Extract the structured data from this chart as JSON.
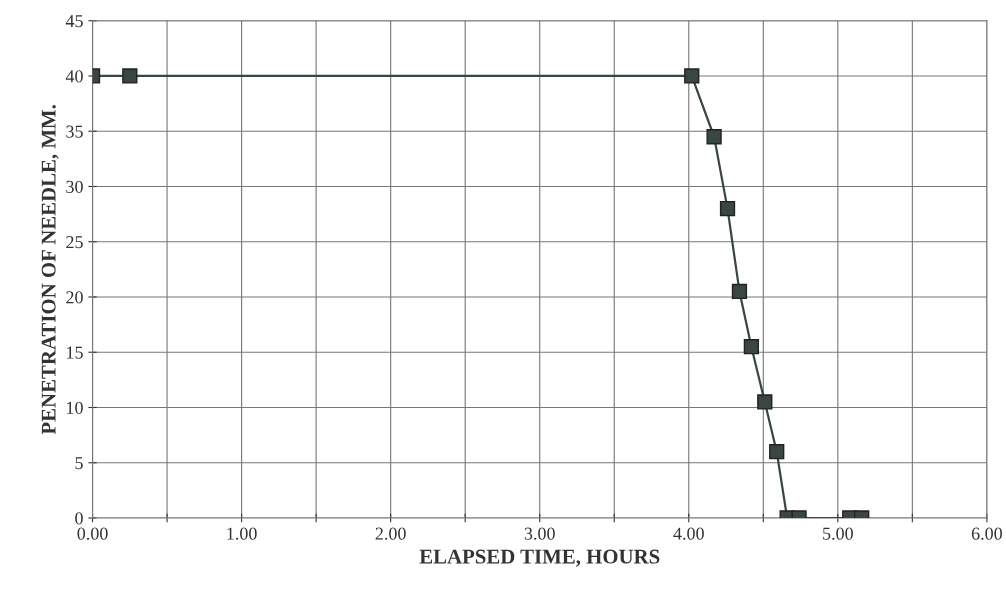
{
  "chart_data": {
    "type": "line",
    "xlabel": "ELAPSED TIME, HOURS",
    "ylabel": "PENETRATION OF NEEDLE, MM.",
    "series": [
      {
        "color": "#3a4644",
        "x": [
          0.0,
          0.25,
          4.02,
          4.17,
          4.26,
          4.34,
          4.42,
          4.51,
          4.59,
          4.66,
          4.74,
          5.08,
          5.16
        ],
        "values": [
          40,
          40,
          40,
          34.5,
          28,
          20.5,
          15.5,
          10.5,
          6,
          0,
          0,
          0,
          0
        ]
      }
    ],
    "xlim": [
      0,
      6
    ],
    "ylim": [
      0,
      45
    ],
    "xticks": [
      {
        "value": 0,
        "label": "0.00"
      },
      {
        "value": 0.5,
        "label": null
      },
      {
        "value": 1,
        "label": "1.00"
      },
      {
        "value": 1.5,
        "label": null
      },
      {
        "value": 2,
        "label": "2.00"
      },
      {
        "value": 2.5,
        "label": null
      },
      {
        "value": 3,
        "label": "3.00"
      },
      {
        "value": 3.5,
        "label": null
      },
      {
        "value": 4,
        "label": "4.00"
      },
      {
        "value": 4.5,
        "label": null
      },
      {
        "value": 5,
        "label": "5.00"
      },
      {
        "value": 5.5,
        "label": null
      },
      {
        "value": 6,
        "label": "6.00"
      }
    ],
    "yticks": [
      0,
      5,
      10,
      15,
      20,
      25,
      30,
      35,
      40,
      45
    ],
    "grid": true,
    "marker": "square",
    "line_style": "solid",
    "legend": false
  }
}
